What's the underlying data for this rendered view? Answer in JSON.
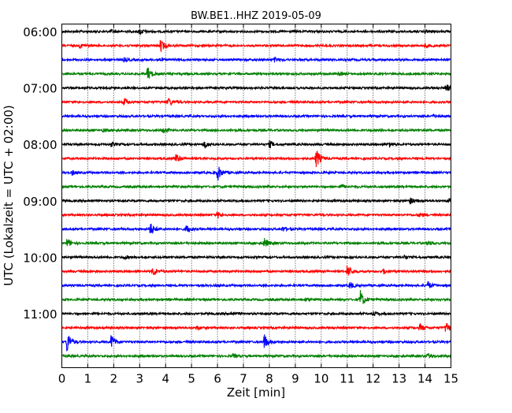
{
  "chart_data": {
    "type": "line",
    "subtype": "helicorder",
    "title": "BW.BE1..HHZ 2019-05-09",
    "xlabel": "Zeit  [min]",
    "ylabel": "UTC (Lokalzeit = UTC + 02:00)",
    "xlim": [
      0,
      15
    ],
    "x_ticks": [
      0,
      1,
      2,
      3,
      4,
      5,
      6,
      7,
      8,
      9,
      10,
      11,
      12,
      13,
      14,
      15
    ],
    "x_tick_labels": [
      "0",
      "1",
      "2",
      "3",
      "4",
      "5",
      "6",
      "7",
      "8",
      "9",
      "10",
      "11",
      "12",
      "13",
      "14",
      "15"
    ],
    "y_tick_labels": [
      "06:00",
      "07:00",
      "08:00",
      "09:00",
      "10:00",
      "11:00"
    ],
    "trace_interval_min": 15,
    "trace_colors": [
      "#000000",
      "#ff0000",
      "#0000ff",
      "#008000"
    ],
    "grid": "vertical dotted lines at each minute",
    "series": [
      {
        "start": "06:00",
        "events": [
          {
            "x": 3.0,
            "amp": 0.25
          },
          {
            "x": 1.9,
            "amp": 0.15
          },
          {
            "x": 14.0,
            "amp": 0.15
          }
        ]
      },
      {
        "start": "06:15",
        "events": [
          {
            "x": 3.8,
            "amp": 0.55
          },
          {
            "x": 0.7,
            "amp": 0.2
          },
          {
            "x": 14.0,
            "amp": 0.2
          }
        ]
      },
      {
        "start": "06:30",
        "events": [
          {
            "x": 3.7,
            "amp": 0.2
          },
          {
            "x": 8.2,
            "amp": 0.2
          },
          {
            "x": 2.4,
            "amp": 0.15
          }
        ]
      },
      {
        "start": "06:45",
        "events": [
          {
            "x": 3.3,
            "amp": 0.6
          },
          {
            "x": 10.7,
            "amp": 0.15
          }
        ]
      },
      {
        "start": "07:00",
        "events": [
          {
            "x": 14.8,
            "amp": 0.35
          }
        ]
      },
      {
        "start": "07:15",
        "events": [
          {
            "x": 2.4,
            "amp": 0.35
          },
          {
            "x": 4.1,
            "amp": 0.4
          }
        ]
      },
      {
        "start": "07:30",
        "events": [
          {
            "x": 14.3,
            "amp": 0.15
          }
        ]
      },
      {
        "start": "07:45",
        "events": [
          {
            "x": 3.9,
            "amp": 0.3
          },
          {
            "x": 1.6,
            "amp": 0.15
          }
        ]
      },
      {
        "start": "08:00",
        "events": [
          {
            "x": 1.9,
            "amp": 0.2
          },
          {
            "x": 5.5,
            "amp": 0.3
          },
          {
            "x": 8.0,
            "amp": 0.3
          },
          {
            "x": 12.6,
            "amp": 0.25
          }
        ]
      },
      {
        "start": "08:15",
        "events": [
          {
            "x": 4.4,
            "amp": 0.45
          },
          {
            "x": 9.8,
            "amp": 0.9
          }
        ]
      },
      {
        "start": "08:30",
        "events": [
          {
            "x": 6.0,
            "amp": 0.7
          },
          {
            "x": 0.4,
            "amp": 0.2
          }
        ]
      },
      {
        "start": "08:45",
        "events": [
          {
            "x": 10.8,
            "amp": 0.15
          }
        ]
      },
      {
        "start": "09:00",
        "events": [
          {
            "x": 13.4,
            "amp": 0.3
          },
          {
            "x": 14.9,
            "amp": 0.3
          }
        ]
      },
      {
        "start": "09:15",
        "events": [
          {
            "x": 6.0,
            "amp": 0.3
          },
          {
            "x": 13.8,
            "amp": 0.2
          }
        ]
      },
      {
        "start": "09:30",
        "events": [
          {
            "x": 3.4,
            "amp": 0.6
          },
          {
            "x": 4.8,
            "amp": 0.4
          },
          {
            "x": 8.5,
            "amp": 0.2
          }
        ]
      },
      {
        "start": "09:45",
        "events": [
          {
            "x": 0.2,
            "amp": 0.4
          },
          {
            "x": 7.8,
            "amp": 0.45
          },
          {
            "x": 14.1,
            "amp": 0.2
          }
        ]
      },
      {
        "start": "10:00",
        "events": [
          {
            "x": 2.4,
            "amp": 0.15
          },
          {
            "x": 13.2,
            "amp": 0.15
          }
        ]
      },
      {
        "start": "10:15",
        "events": [
          {
            "x": 3.5,
            "amp": 0.45
          },
          {
            "x": 11.0,
            "amp": 0.65
          },
          {
            "x": 12.4,
            "amp": 0.2
          }
        ]
      },
      {
        "start": "10:30",
        "events": [
          {
            "x": 11.1,
            "amp": 0.3
          },
          {
            "x": 14.1,
            "amp": 0.35
          }
        ]
      },
      {
        "start": "10:45",
        "events": [
          {
            "x": 11.5,
            "amp": 0.8
          },
          {
            "x": 9.4,
            "amp": 0.15
          }
        ]
      },
      {
        "start": "11:00",
        "events": [
          {
            "x": 6.5,
            "amp": 0.2
          },
          {
            "x": 12.0,
            "amp": 0.2
          }
        ]
      },
      {
        "start": "11:15",
        "events": [
          {
            "x": 14.8,
            "amp": 0.6
          },
          {
            "x": 13.8,
            "amp": 0.35
          },
          {
            "x": 5.2,
            "amp": 0.15
          }
        ]
      },
      {
        "start": "11:30",
        "events": [
          {
            "x": 0.2,
            "amp": 1.0
          },
          {
            "x": 1.9,
            "amp": 0.6
          },
          {
            "x": 7.8,
            "amp": 0.7
          }
        ]
      },
      {
        "start": "11:45",
        "events": [
          {
            "x": 14.1,
            "amp": 0.25
          },
          {
            "x": 6.6,
            "amp": 0.15
          }
        ]
      }
    ]
  }
}
